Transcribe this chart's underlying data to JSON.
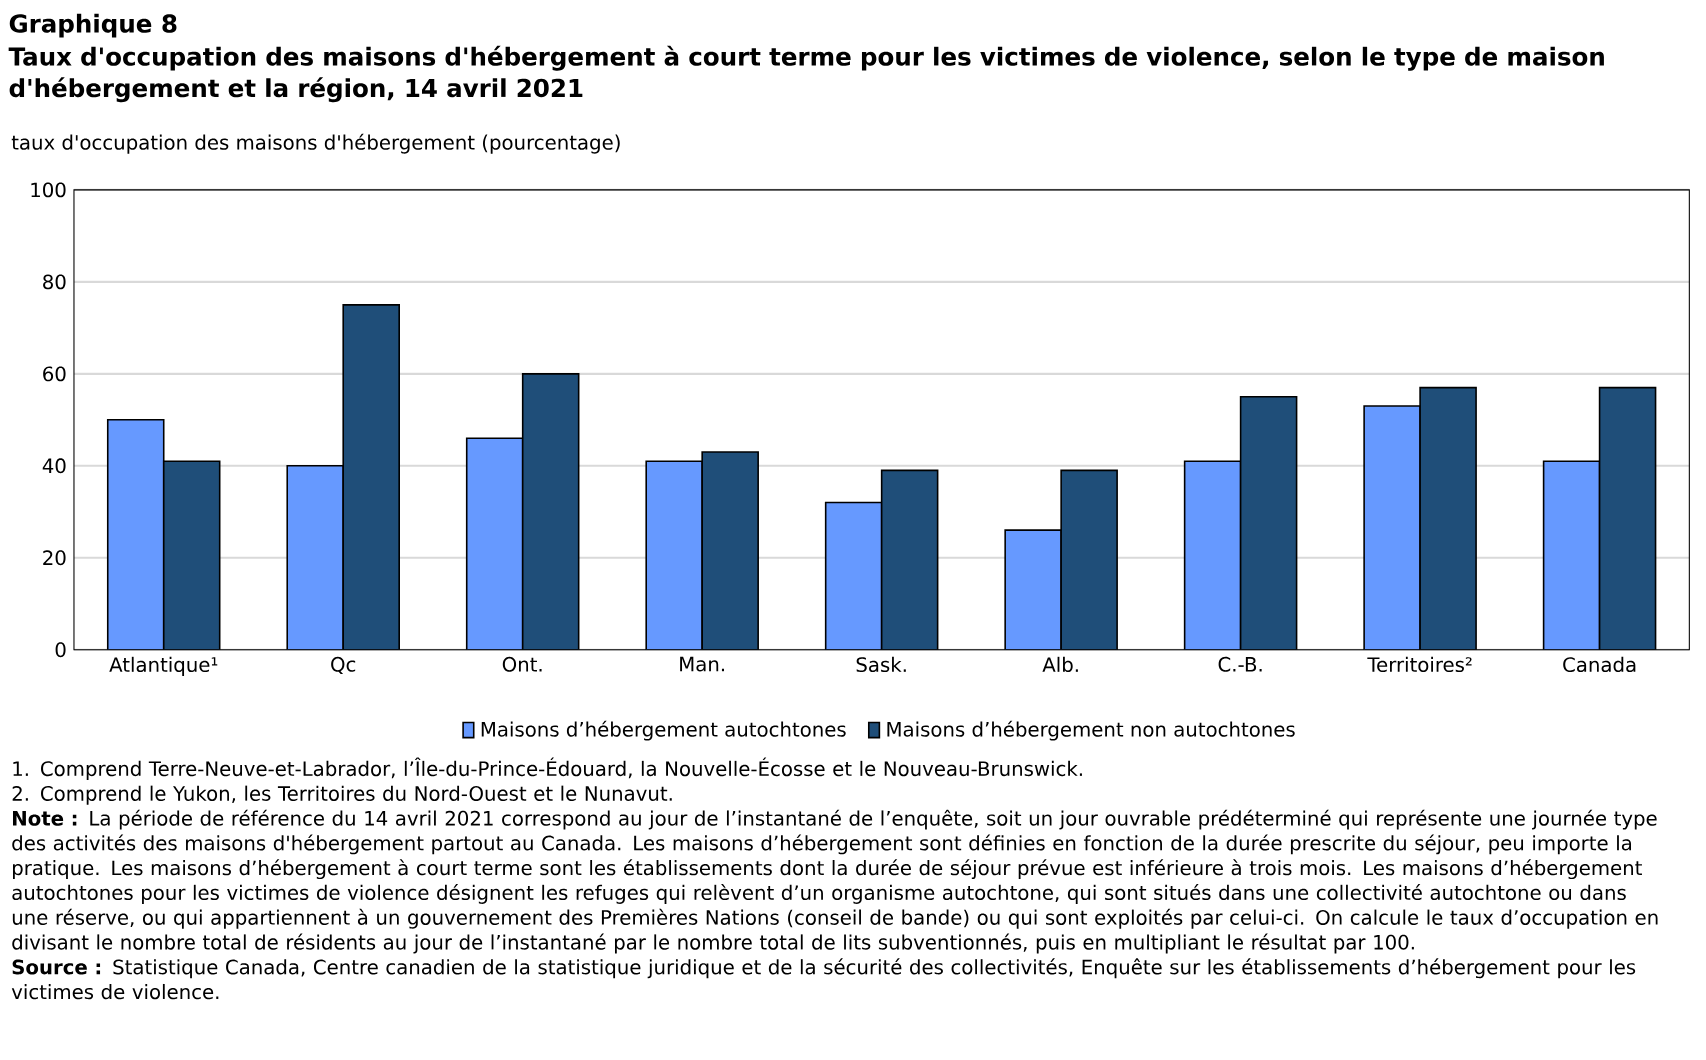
{
  "chart_data": {
    "type": "bar",
    "subtitle": "Graphique  8",
    "title": "Taux d'occupation des maisons d'hébergement  à court terme pour les victimes de violence, selon le type de maison d'hébergement  et la région, 14 avril 2021",
    "ylabel": "taux d'occupation des maisons d'hébergement (pourcentage)",
    "categories": [
      "Atlantique¹",
      "Qc",
      "Ont.",
      "Man.",
      "Sask.",
      "Alb.",
      "C.-B.",
      "Territoires²",
      "Canada"
    ],
    "series": [
      {
        "name": "Maisons d’hébergement autochtones",
        "color": "#6699ff",
        "values": [
          50,
          40,
          46,
          41,
          32,
          26,
          41,
          53,
          41
        ]
      },
      {
        "name": "Maisons d’hébergement non autochtones",
        "color": "#1f4e79",
        "values": [
          41,
          75,
          60,
          43,
          39,
          39,
          55,
          57,
          57
        ]
      }
    ],
    "ylim": [
      0,
      100
    ],
    "yticks": [
      0,
      20,
      40,
      60,
      80,
      100
    ],
    "grid": "y",
    "legend": "bottom",
    "annotations": [
      "1. Comprend Terre-Neuve-et-Labrador, l’Île-du-Prince-Édouard, la Nouvelle-Écosse et le Nouveau-Brunswick.",
      "2. Comprend le Yukon, les Territoires du Nord-Ouest et le Nunavut.",
      "**Note :** La période de référence du 14 avril 2021 correspond au jour de l’instantané de l’enquête, soit un jour ouvrable prédéterminé qui représente une journée type des activités des maisons d'hébergement partout au Canada. Les maisons d’hébergement sont définies en fonction de la durée prescrite du séjour, peu importe la pratique. Les maisons d’hébergement à court terme sont les établissements dont la durée de séjour prévue est inférieure à trois mois. Les maisons d’hébergement autochtones pour les victimes de violence désignent les refuges qui relèvent d’un organisme autochtone, qui sont situés dans une collectivité autochtone ou dans une réserve, ou qui appartiennent à un gouvernement des Premières Nations (conseil de bande) ou qui sont exploités par celui-ci. On calcule le taux d’occupation en divisant le nombre total de résidents au jour de l’instantané par le nombre total de lits subventionnés, puis en multipliant le résultat par 100.",
      "**Source :** Statistique Canada, Centre canadien de la statistique juridique et de la sécurité des collectivités, Enquête sur les établissements d’hébergement pour les victimes de violence."
    ]
  }
}
